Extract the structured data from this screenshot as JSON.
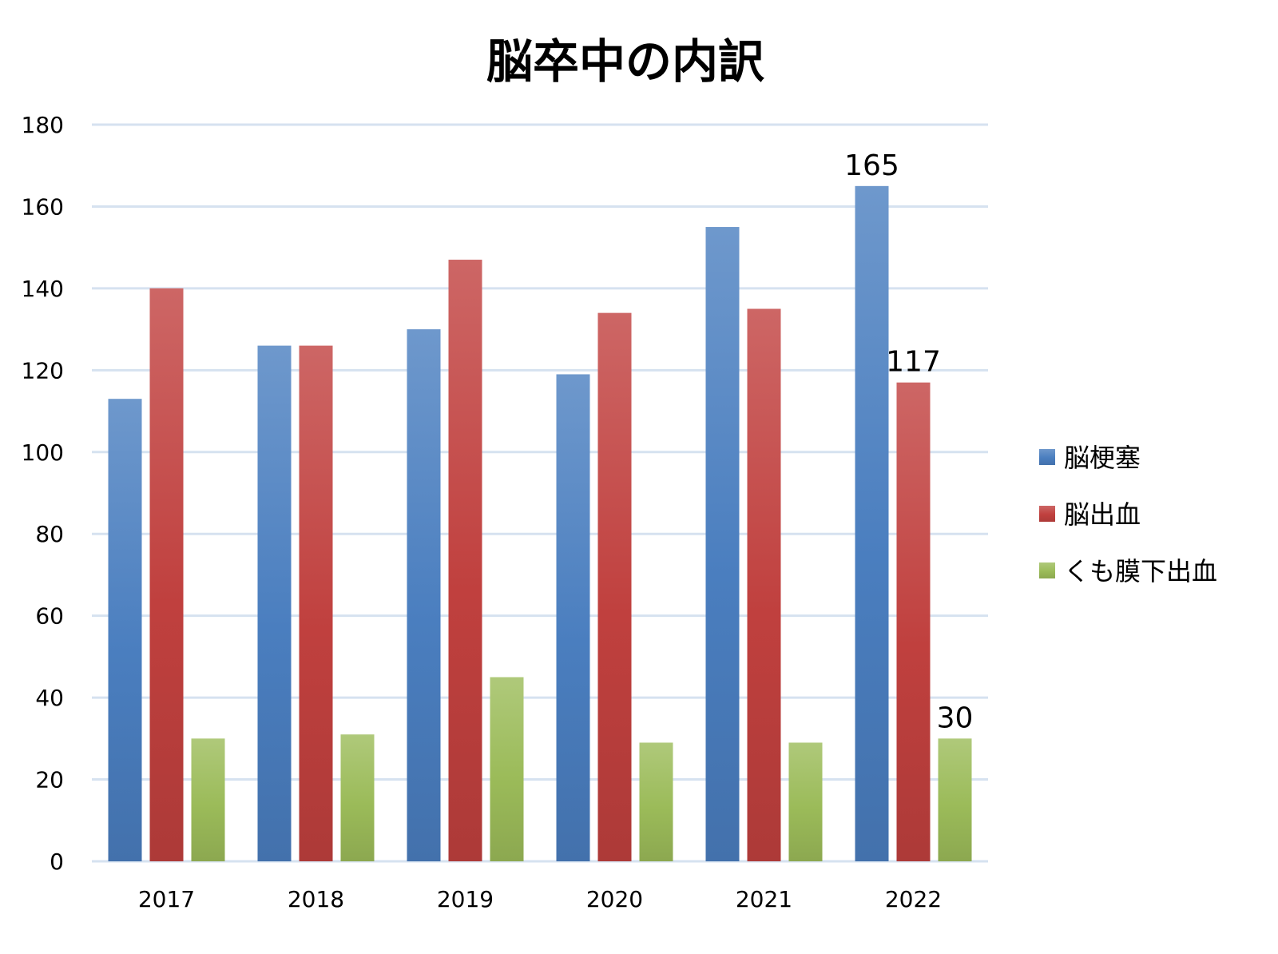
{
  "chart_data": {
    "type": "bar",
    "title": "脳卒中の内訳",
    "xlabel": "",
    "ylabel": "",
    "categories": [
      "2017",
      "2018",
      "2019",
      "2020",
      "2021",
      "2022"
    ],
    "series": [
      {
        "name": "脳梗塞",
        "values": [
          113,
          126,
          130,
          119,
          155,
          165
        ],
        "color": "#4a7ebf"
      },
      {
        "name": "脳出血",
        "values": [
          140,
          126,
          147,
          134,
          135,
          117
        ],
        "color": "#c0403e"
      },
      {
        "name": "くも膜下出血",
        "values": [
          30,
          31,
          45,
          29,
          29,
          30
        ],
        "color": "#9bbb59"
      }
    ],
    "data_labels": [
      {
        "series": 0,
        "category": "2022",
        "text": "165"
      },
      {
        "series": 1,
        "category": "2022",
        "text": "117"
      },
      {
        "series": 2,
        "category": "2022",
        "text": "30"
      }
    ],
    "ylim": [
      0,
      180
    ],
    "yticks": [
      0,
      20,
      40,
      60,
      80,
      100,
      120,
      140,
      160,
      180
    ],
    "grid": true,
    "gridline_color": "#d6e2f0",
    "legend_position": "right"
  }
}
